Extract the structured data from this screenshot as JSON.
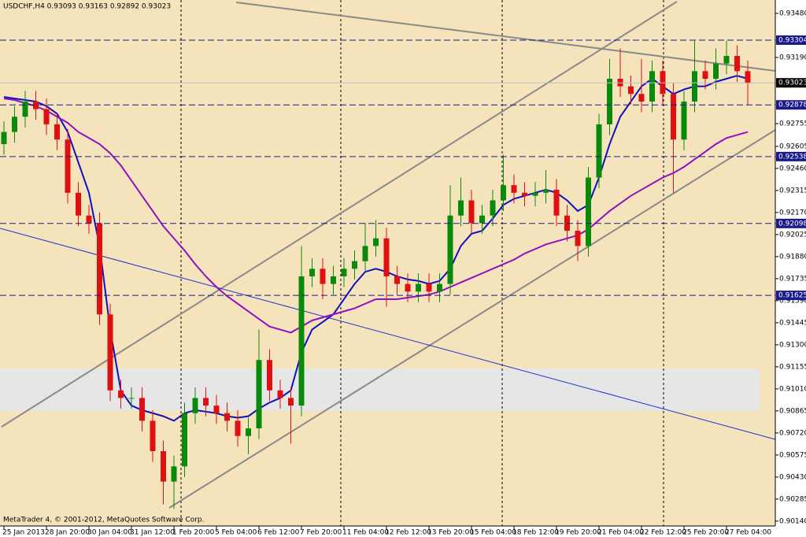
{
  "chart_data": {
    "type": "candlestick",
    "title": "USDCHF,H4  0.93093 0.93163 0.92892 0.93023",
    "footer": "MetaTrader 4, © 2001-2012, MetaQuotes Software Corp.",
    "categories": [
      "25 Jan 2013",
      null,
      null,
      null,
      "28 Jan 20:00",
      null,
      null,
      null,
      "30 Jan 04:00",
      null,
      null,
      null,
      "31 Jan 12:00",
      null,
      null,
      null,
      "1 Feb 20:00",
      null,
      null,
      null,
      "5 Feb 04:00",
      null,
      null,
      null,
      "6 Feb 12:00",
      null,
      null,
      null,
      "7 Feb 20:00",
      null,
      null,
      null,
      "11 Feb 04:00",
      null,
      null,
      null,
      "12 Feb 12:00",
      null,
      null,
      null,
      "13 Feb 20:00",
      null,
      null,
      null,
      "15 Feb 04:00",
      null,
      null,
      null,
      "18 Feb 12:00",
      null,
      null,
      null,
      "19 Feb 20:00",
      null,
      null,
      null,
      "21 Feb 04:00",
      null,
      null,
      null,
      "22 Feb 12:00",
      null,
      null,
      null,
      "25 Feb 20:00",
      null,
      null,
      null,
      "27 Feb 04:00",
      null,
      null
    ],
    "open": [
      0.9262,
      0.927,
      0.928,
      0.929,
      0.9285,
      0.9275,
      0.9265,
      0.923,
      0.9215,
      0.921,
      0.915,
      0.91,
      0.9095,
      0.9095,
      0.908,
      0.906,
      0.904,
      0.905,
      0.9085,
      0.9095,
      0.909,
      0.9085,
      0.908,
      0.907,
      0.9075,
      0.912,
      0.91,
      0.9095,
      0.909,
      0.9175,
      0.918,
      0.917,
      0.9175,
      0.918,
      0.9185,
      0.9195,
      0.92,
      0.9175,
      0.917,
      0.9165,
      0.917,
      0.9165,
      0.917,
      0.9215,
      0.9225,
      0.921,
      0.9215,
      0.9225,
      0.9235,
      0.923,
      0.9228,
      0.923,
      0.9232,
      0.9215,
      0.9205,
      0.9195,
      0.924,
      0.9275,
      0.9305,
      0.93,
      0.9295,
      0.929,
      0.931,
      0.9295,
      0.9265,
      0.929,
      0.931,
      0.9305,
      0.9315,
      0.932,
      0.931
    ],
    "high": [
      0.9277,
      0.9287,
      0.9297,
      0.9297,
      0.9292,
      0.9282,
      0.9272,
      0.9237,
      0.9222,
      0.9217,
      0.9157,
      0.9107,
      0.9102,
      0.9102,
      0.9087,
      0.9067,
      0.9057,
      0.9092,
      0.9102,
      0.9102,
      0.9097,
      0.9092,
      0.9087,
      0.9082,
      0.914,
      0.9127,
      0.9107,
      0.9102,
      0.9195,
      0.9187,
      0.9187,
      0.9182,
      0.9187,
      0.9192,
      0.921,
      0.9212,
      0.9207,
      0.9182,
      0.9177,
      0.9177,
      0.9177,
      0.9177,
      0.9235,
      0.924,
      0.9232,
      0.9222,
      0.9232,
      0.9255,
      0.9242,
      0.9237,
      0.9237,
      0.9245,
      0.9239,
      0.9222,
      0.9212,
      0.9247,
      0.9282,
      0.9318,
      0.9325,
      0.9307,
      0.9318,
      0.9317,
      0.9317,
      0.9302,
      0.9297,
      0.933,
      0.9317,
      0.9325,
      0.933,
      0.9327,
      0.9317
    ],
    "low": [
      0.9255,
      0.9263,
      0.9273,
      0.9278,
      0.9268,
      0.9258,
      0.9223,
      0.9208,
      0.9203,
      0.9143,
      0.9093,
      0.9088,
      0.9088,
      0.9073,
      0.9053,
      0.9025,
      0.9022,
      0.9043,
      0.9078,
      0.9083,
      0.9078,
      0.9073,
      0.9063,
      0.9058,
      0.9068,
      0.9093,
      0.9088,
      0.9065,
      0.9083,
      0.9168,
      0.916,
      0.9163,
      0.9168,
      0.9173,
      0.9178,
      0.9188,
      0.9155,
      0.9163,
      0.9158,
      0.9158,
      0.9158,
      0.9158,
      0.9163,
      0.9208,
      0.9203,
      0.9203,
      0.9208,
      0.9218,
      0.9223,
      0.9221,
      0.9221,
      0.9223,
      0.9208,
      0.9198,
      0.9185,
      0.9188,
      0.9233,
      0.9268,
      0.9293,
      0.9288,
      0.9283,
      0.9283,
      0.9288,
      0.923,
      0.9258,
      0.9283,
      0.9298,
      0.9298,
      0.9308,
      0.9303,
      0.9288
    ],
    "close": [
      0.927,
      0.928,
      0.929,
      0.9285,
      0.9275,
      0.9265,
      0.923,
      0.9215,
      0.921,
      0.915,
      0.91,
      0.9095,
      0.9095,
      0.908,
      0.906,
      0.904,
      0.905,
      0.9085,
      0.9095,
      0.909,
      0.9085,
      0.908,
      0.907,
      0.9075,
      0.912,
      0.91,
      0.9095,
      0.909,
      0.9175,
      0.918,
      0.917,
      0.9175,
      0.918,
      0.9185,
      0.9195,
      0.92,
      0.9175,
      0.917,
      0.9165,
      0.917,
      0.9165,
      0.917,
      0.9215,
      0.9225,
      0.921,
      0.9215,
      0.9225,
      0.9235,
      0.923,
      0.9228,
      0.923,
      0.9232,
      0.9215,
      0.9205,
      0.9195,
      0.924,
      0.9275,
      0.9305,
      0.93,
      0.9295,
      0.929,
      0.931,
      0.9295,
      0.9265,
      0.929,
      0.931,
      0.9305,
      0.9315,
      0.932,
      0.931,
      0.9302
    ],
    "up_color": "#0a8a0a",
    "down_color": "#e01010",
    "overlays": [
      {
        "color": "#1010c0",
        "values": [
          0.9293,
          0.9292,
          0.9291,
          0.929,
          0.9287,
          0.9282,
          0.927,
          0.925,
          0.923,
          0.9195,
          0.914,
          0.91,
          0.909,
          0.9087,
          0.9085,
          0.9083,
          0.908,
          0.9085,
          0.9087,
          0.9086,
          0.9085,
          0.9083,
          0.9082,
          0.9083,
          0.9088,
          0.9092,
          0.9095,
          0.91,
          0.9125,
          0.914,
          0.9145,
          0.915,
          0.916,
          0.917,
          0.9178,
          0.918,
          0.9178,
          0.9175,
          0.9173,
          0.9172,
          0.917,
          0.9172,
          0.918,
          0.9195,
          0.9203,
          0.9205,
          0.9213,
          0.9222,
          0.9226,
          0.9228,
          0.923,
          0.9232,
          0.923,
          0.9225,
          0.9218,
          0.9222,
          0.924,
          0.9262,
          0.928,
          0.929,
          0.93,
          0.9305,
          0.93,
          0.9295,
          0.9298,
          0.93,
          0.93,
          0.9303,
          0.9305,
          0.9307,
          0.9305
        ]
      },
      {
        "color": "#9010c0",
        "values": [
          0.9292,
          0.9291,
          0.9289,
          0.9287,
          0.9284,
          0.928,
          0.9276,
          0.927,
          0.9266,
          0.9262,
          0.9256,
          0.9248,
          0.9238,
          0.9228,
          0.9218,
          0.9208,
          0.92,
          0.9192,
          0.9183,
          0.9175,
          0.9168,
          0.9162,
          0.9157,
          0.9152,
          0.9147,
          0.9142,
          0.914,
          0.9138,
          0.9142,
          0.9146,
          0.9148,
          0.915,
          0.9152,
          0.9154,
          0.9157,
          0.916,
          0.916,
          0.916,
          0.9161,
          0.9162,
          0.9163,
          0.9165,
          0.9168,
          0.9171,
          0.9174,
          0.9177,
          0.918,
          0.9183,
          0.9186,
          0.919,
          0.9193,
          0.9196,
          0.9198,
          0.92,
          0.9202,
          0.9206,
          0.9212,
          0.9218,
          0.9223,
          0.9228,
          0.9232,
          0.9236,
          0.924,
          0.9243,
          0.9247,
          0.9252,
          0.9257,
          0.9262,
          0.9266,
          0.9268,
          0.927
        ]
      }
    ],
    "levels": [
      0.93304,
      0.92878,
      0.92538,
      0.92098,
      0.91625
    ],
    "current_price": 0.93023,
    "ylim": [
      0.90108,
      0.93568
    ],
    "yticks": [
      {
        "value": 0.9348,
        "label": "0.93480"
      },
      {
        "value": 0.9319,
        "label": "0.93190"
      },
      0.92755,
      0.92605,
      {
        "value": 0.9246,
        "label": "0.92460"
      },
      0.92315,
      {
        "value": 0.9217,
        "label": "0.92170"
      },
      0.92025,
      {
        "value": 0.9188,
        "label": "0.91880"
      },
      0.91735,
      {
        "value": 0.9159,
        "label": "0.91590"
      },
      0.91445,
      {
        "value": 0.913,
        "label": "0.91300"
      },
      0.91155,
      {
        "value": 0.9101,
        "label": "0.91010"
      },
      0.90865,
      {
        "value": 0.9072,
        "label": "0.90720"
      },
      0.90575,
      {
        "value": 0.9043,
        "label": "0.90430"
      },
      0.90285,
      {
        "value": 0.9014,
        "label": "0.90140"
      }
    ]
  }
}
